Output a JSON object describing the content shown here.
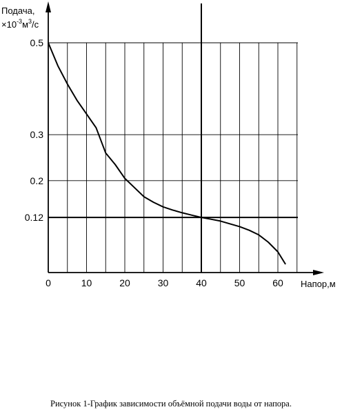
{
  "chart_data": {
    "type": "line",
    "xlabel": "Напор,м",
    "ylabel_line1": "Подача,",
    "ylabel_line2_prefix": "×10",
    "ylabel_line2_exp": "-3",
    "ylabel_line2_unit": "м",
    "ylabel_line2_unit_exp": "3",
    "ylabel_line2_suffix": "/с",
    "xlim": [
      0,
      65
    ],
    "ylim": [
      0,
      0.5
    ],
    "x_ticks": [
      0,
      10,
      20,
      30,
      40,
      50,
      60
    ],
    "x_tick_labels": [
      "0",
      "10",
      "20",
      "30",
      "40",
      "50",
      "60"
    ],
    "y_ticks": [
      0.5,
      0.3,
      0.2,
      0.12
    ],
    "y_tick_labels": [
      "0.5",
      "0.3",
      "0.2",
      "0.12"
    ],
    "grid": true,
    "highlight_lines": {
      "x": 40,
      "y": 0.12
    },
    "series": [
      {
        "x": [
          0,
          2.5,
          5,
          7.5,
          10,
          12.5,
          15,
          17.5,
          20,
          22.5,
          25,
          27.5,
          30,
          32.5,
          35,
          37.5,
          40,
          42.5,
          45,
          47.5,
          50,
          52.5,
          55,
          57.5,
          60,
          62
        ],
        "y": [
          0.5,
          0.45,
          0.41,
          0.375,
          0.345,
          0.315,
          0.26,
          0.235,
          0.205,
          0.185,
          0.165,
          0.153,
          0.143,
          0.136,
          0.13,
          0.125,
          0.12,
          0.116,
          0.112,
          0.106,
          0.1,
          0.092,
          0.082,
          0.066,
          0.045,
          0.018
        ]
      }
    ]
  },
  "caption": "Рисунок 1-График зависимости объёмной подачи воды от напора."
}
